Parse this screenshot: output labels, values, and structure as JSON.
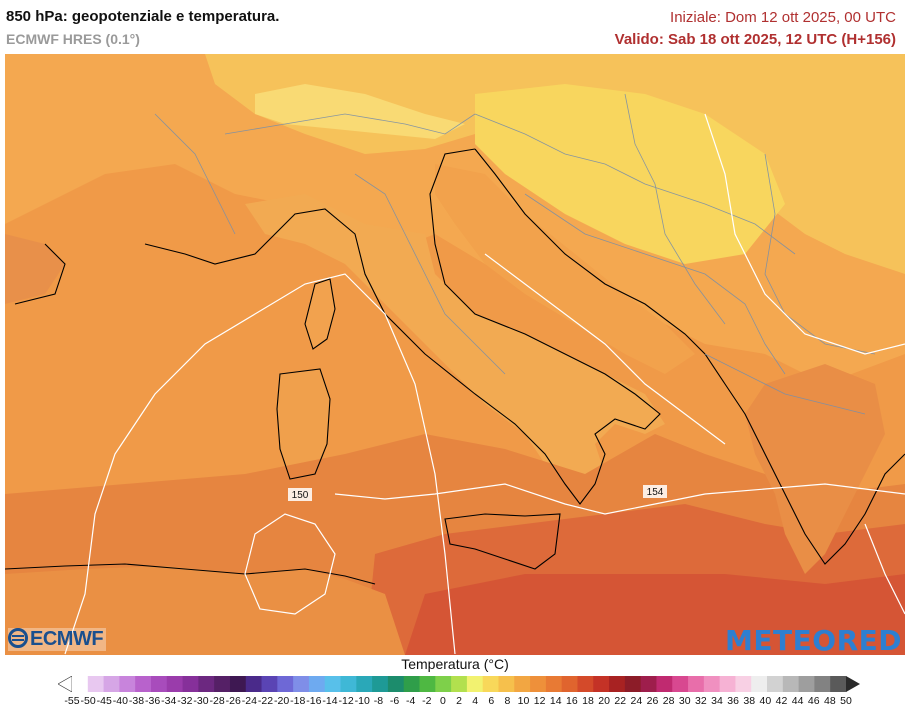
{
  "header": {
    "title": "850 hPa: geopotenziale e temperatura.",
    "model": "ECMWF HRES (0.1°)",
    "init": "Iniziale: Dom 12 ott 2025, 00 UTC",
    "valid": "Valido: Sab 18 ott 2025, 12 UTC (H+156)"
  },
  "map": {
    "isolines": [
      {
        "label": "150"
      },
      {
        "label": "154"
      }
    ]
  },
  "logos": {
    "left": "ECMWF",
    "right": "METEORED"
  },
  "legend": {
    "title": "Temperatura (°C)",
    "labels": [
      "-55",
      "-50",
      "-45",
      "-40",
      "-38",
      "-36",
      "-34",
      "-32",
      "-30",
      "-28",
      "-26",
      "-24",
      "-22",
      "-20",
      "-18",
      "-16",
      "-14",
      "-12",
      "-10",
      "-8",
      "-6",
      "-4",
      "-2",
      "0",
      "2",
      "4",
      "6",
      "8",
      "10",
      "12",
      "14",
      "16",
      "18",
      "20",
      "22",
      "24",
      "26",
      "28",
      "30",
      "32",
      "34",
      "36",
      "38",
      "40",
      "42",
      "44",
      "46",
      "48",
      "50"
    ],
    "colors": [
      "#ffffff",
      "#e8c8f0",
      "#d6a6e6",
      "#c884dc",
      "#b862cc",
      "#a84cbc",
      "#9a3cab",
      "#86309a",
      "#6c2880",
      "#552066",
      "#3e1852",
      "#4a2a8a",
      "#5a44b4",
      "#6e68d6",
      "#7f8ee8",
      "#6eaaf0",
      "#58c0ea",
      "#3fb8d6",
      "#2aa8b8",
      "#1e9a96",
      "#1c8c6c",
      "#2f9e4a",
      "#4eb842",
      "#7ed04a",
      "#b2e04e",
      "#f2f270",
      "#f8d85a",
      "#f6c04c",
      "#f2a642",
      "#ee903a",
      "#e87a34",
      "#e0642e",
      "#d44a2a",
      "#c43226",
      "#a82222",
      "#8c1c28",
      "#9e1e4c",
      "#c02a70",
      "#d84890",
      "#e86eaa",
      "#f090c0",
      "#f6b2d4",
      "#f8d0e4",
      "#eeeeee",
      "#d2d2d2",
      "#b8b8b8",
      "#9e9e9e",
      "#828282",
      "#5a5a5a"
    ]
  },
  "colors": {
    "sea_warm": "#f09a48",
    "sea_hot": "#e07a3c",
    "sea_red": "#d95f3a",
    "land_warm": "#f6b658",
    "land_yellow": "#f8d65e",
    "border": "#7b8fa6",
    "coast": "#000000",
    "isoline": "#ffffff",
    "init_text": "#b03030"
  }
}
